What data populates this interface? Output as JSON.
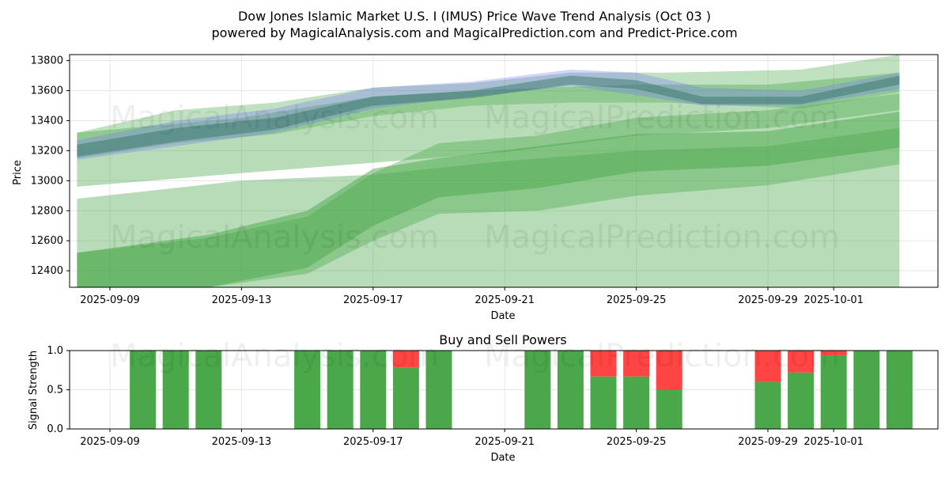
{
  "title_line1": "Dow Jones Islamic Market U.S. I (IMUS) Price Wave Trend Analysis (Oct 03 )",
  "title_line2": "powered by MagicalAnalysis.com and MagicalPrediction.com and Predict-Price.com",
  "watermarks": [
    "MagicalAnalysis.com",
    "MagicalPrediction.com"
  ],
  "colors": {
    "band_green": "#4aa84a",
    "band_blue": "#6f6fff",
    "band_dark": "#2f6f5f",
    "buy": "#4aa84a",
    "sell": "#ff4444",
    "grid": "#e6e6e6"
  },
  "chart_data": [
    {
      "type": "area",
      "ylabel": "Price",
      "xlabel": "Date",
      "ylim": [
        12290,
        13840
      ],
      "xlim_days": [
        "2025-09-08",
        "2025-10-04"
      ],
      "x_ticks": [
        "2025-09-09",
        "2025-09-13",
        "2025-09-17",
        "2025-09-21",
        "2025-09-25",
        "2025-09-29",
        "2025-10-01"
      ],
      "y_ticks": [
        12400,
        12600,
        12800,
        13000,
        13200,
        13400,
        13600,
        13800
      ],
      "grid": true,
      "bands": [
        {
          "color": "green",
          "opacity": 0.4,
          "x": [
            "2025-09-08",
            "2025-09-13",
            "2025-09-17",
            "2025-09-21",
            "2025-09-25",
            "2025-09-29",
            "2025-10-03"
          ],
          "upper": [
            13320,
            13420,
            13560,
            13610,
            13640,
            13640,
            13720
          ],
          "lower": [
            12960,
            13050,
            13120,
            13190,
            13300,
            13350,
            13470
          ]
        },
        {
          "color": "green",
          "opacity": 0.4,
          "x": [
            "2025-09-08",
            "2025-09-13",
            "2025-09-17",
            "2025-09-21",
            "2025-09-25",
            "2025-09-29",
            "2025-10-03"
          ],
          "upper": [
            12880,
            13000,
            13040,
            13130,
            13200,
            13230,
            13350
          ],
          "lower": [
            12290,
            12290,
            12290,
            12290,
            12290,
            12290,
            12290
          ]
        },
        {
          "color": "green",
          "opacity": 0.4,
          "x": [
            "2025-09-08",
            "2025-09-12",
            "2025-09-15",
            "2025-09-17",
            "2025-09-19",
            "2025-09-22",
            "2025-09-25",
            "2025-09-29",
            "2025-10-03"
          ],
          "upper": [
            12520,
            12620,
            12760,
            13050,
            13250,
            13300,
            13420,
            13470,
            13580
          ],
          "lower": [
            12290,
            12290,
            12380,
            12600,
            12780,
            12800,
            12900,
            12970,
            13110
          ]
        },
        {
          "color": "green",
          "opacity": 0.5,
          "x": [
            "2025-09-08",
            "2025-09-12",
            "2025-09-15",
            "2025-09-17",
            "2025-09-19",
            "2025-09-22",
            "2025-09-25",
            "2025-09-29",
            "2025-10-03"
          ],
          "upper": [
            12520,
            12640,
            12800,
            13080,
            13150,
            13230,
            13310,
            13330,
            13460
          ],
          "lower": [
            12290,
            12290,
            12420,
            12700,
            12890,
            12950,
            13060,
            13100,
            13220
          ]
        },
        {
          "color": "green",
          "opacity": 0.35,
          "x": [
            "2025-09-08",
            "2025-09-11",
            "2025-09-14",
            "2025-09-17",
            "2025-09-20",
            "2025-09-23",
            "2025-09-26",
            "2025-09-30",
            "2025-10-03"
          ],
          "upper": [
            13320,
            13470,
            13520,
            13620,
            13650,
            13720,
            13720,
            13740,
            13860
          ],
          "lower": [
            13150,
            13250,
            13310,
            13430,
            13500,
            13520,
            13520,
            13480,
            13590
          ]
        },
        {
          "color": "blue",
          "opacity": 0.3,
          "x": [
            "2025-09-08",
            "2025-09-11",
            "2025-09-14",
            "2025-09-17",
            "2025-09-20",
            "2025-09-23",
            "2025-09-25",
            "2025-09-27",
            "2025-09-30",
            "2025-10-03"
          ],
          "upper": [
            13270,
            13400,
            13480,
            13620,
            13660,
            13740,
            13720,
            13620,
            13600,
            13720
          ],
          "lower": [
            13140,
            13230,
            13320,
            13480,
            13560,
            13630,
            13570,
            13500,
            13500,
            13610
          ]
        },
        {
          "color": "dark",
          "opacity": 0.45,
          "x": [
            "2025-09-08",
            "2025-09-11",
            "2025-09-14",
            "2025-09-17",
            "2025-09-20",
            "2025-09-23",
            "2025-09-25",
            "2025-09-27",
            "2025-09-30",
            "2025-10-03"
          ],
          "upper": [
            13240,
            13350,
            13420,
            13560,
            13600,
            13700,
            13670,
            13560,
            13560,
            13700
          ],
          "lower": [
            13160,
            13260,
            13340,
            13500,
            13550,
            13640,
            13610,
            13510,
            13510,
            13640
          ]
        }
      ]
    },
    {
      "type": "bar",
      "title": "Buy and Sell Powers",
      "ylabel": "Signal Strength",
      "xlabel": "Date",
      "ylim": [
        0,
        1
      ],
      "y_ticks": [
        "0.0",
        "0.5",
        "1.0"
      ],
      "x_ticks": [
        "2025-09-09",
        "2025-09-13",
        "2025-09-17",
        "2025-09-21",
        "2025-09-25",
        "2025-09-29",
        "2025-10-01"
      ],
      "series": [
        {
          "name": "buy",
          "x": [
            "2025-09-10",
            "2025-09-11",
            "2025-09-12",
            "2025-09-15",
            "2025-09-16",
            "2025-09-17",
            "2025-09-18",
            "2025-09-19",
            "2025-09-22",
            "2025-09-23",
            "2025-09-24",
            "2025-09-25",
            "2025-09-26",
            "2025-09-29",
            "2025-09-30",
            "2025-10-01",
            "2025-10-02",
            "2025-10-03"
          ],
          "values": [
            1,
            1,
            1,
            1,
            1,
            1,
            0.78,
            1,
            1,
            1,
            0.67,
            0.67,
            0.5,
            0.6,
            0.72,
            0.94,
            1,
            1
          ]
        },
        {
          "name": "sell",
          "x": [
            "2025-09-10",
            "2025-09-11",
            "2025-09-12",
            "2025-09-15",
            "2025-09-16",
            "2025-09-17",
            "2025-09-18",
            "2025-09-19",
            "2025-09-22",
            "2025-09-23",
            "2025-09-24",
            "2025-09-25",
            "2025-09-26",
            "2025-09-29",
            "2025-09-30",
            "2025-10-01",
            "2025-10-02",
            "2025-10-03"
          ],
          "values": [
            0,
            0,
            0,
            0,
            0,
            0,
            0.22,
            0,
            0,
            0,
            0.33,
            0.33,
            0.5,
            0.4,
            0.28,
            0.06,
            0,
            0
          ]
        }
      ]
    }
  ]
}
